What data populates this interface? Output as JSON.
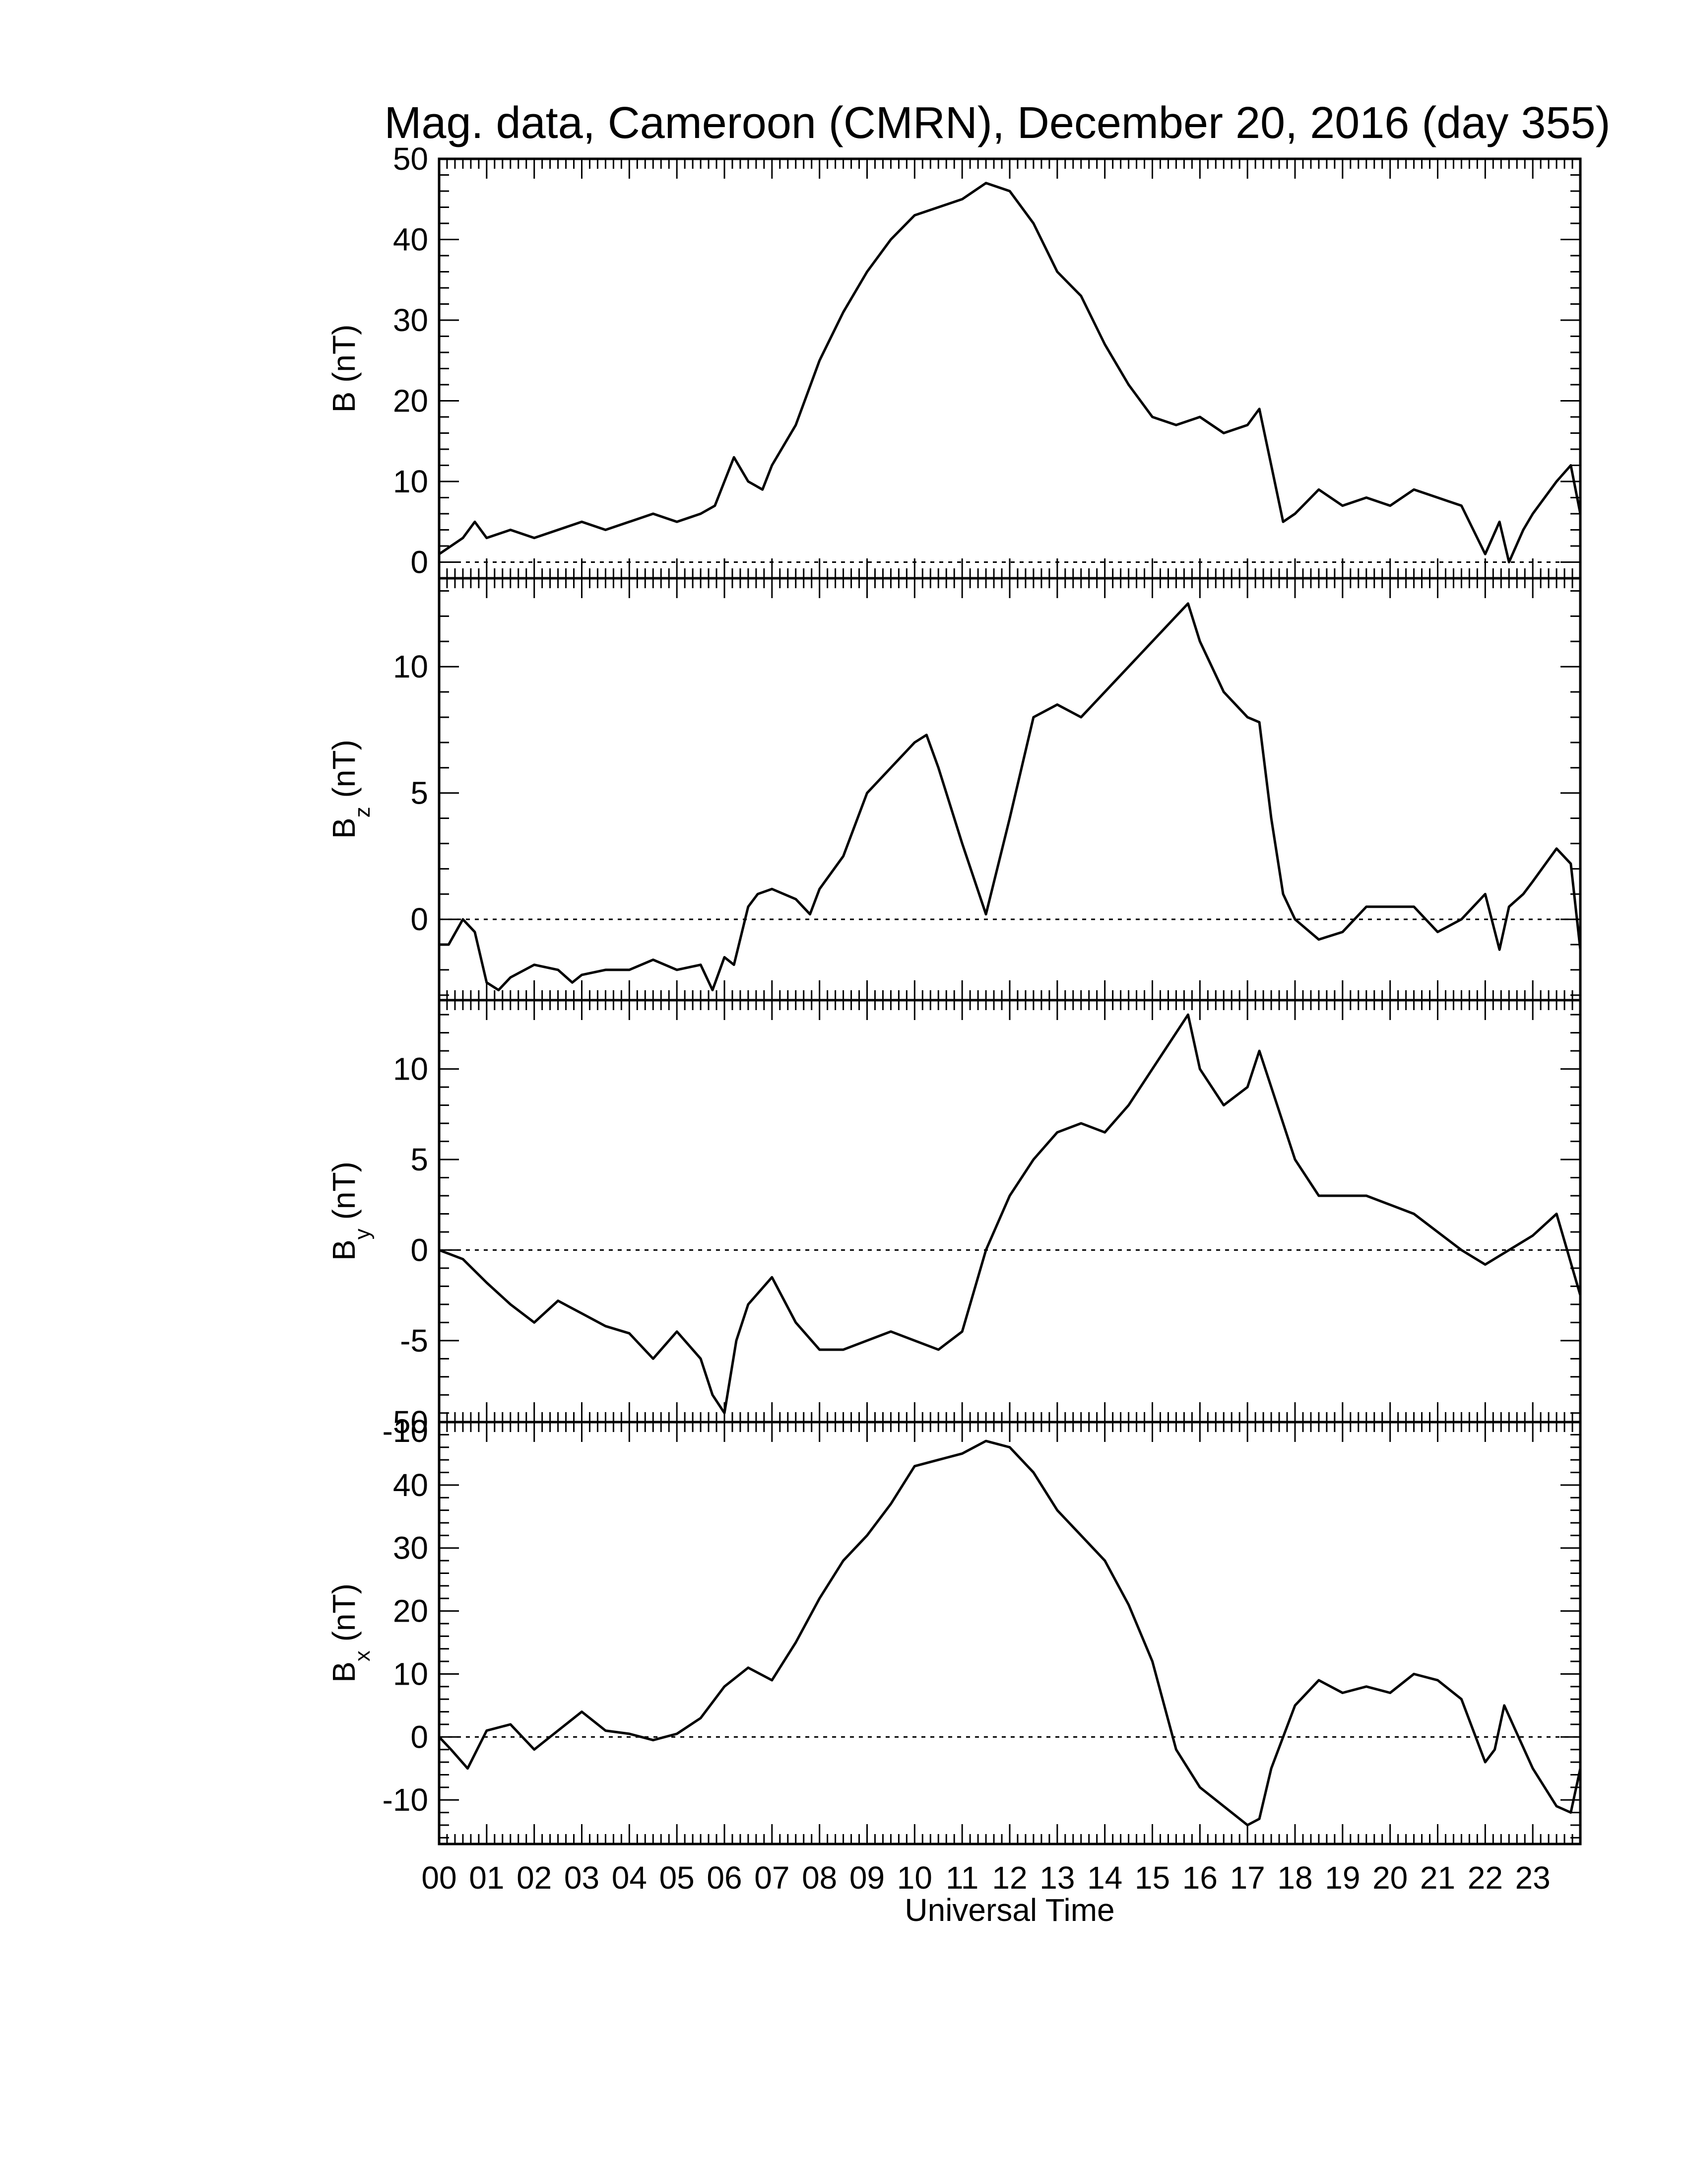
{
  "chart_data": {
    "type": "line",
    "title": "Mag. data, Cameroon (CMRN), December 20, 2016 (day 355)",
    "xlabel": "Universal Time",
    "x_unit": "hours UT",
    "xlim": [
      0,
      24
    ],
    "x_tick_labels": [
      "00",
      "01",
      "02",
      "03",
      "04",
      "05",
      "06",
      "07",
      "08",
      "09",
      "10",
      "11",
      "12",
      "13",
      "14",
      "15",
      "16",
      "17",
      "18",
      "19",
      "20",
      "21",
      "22",
      "23"
    ],
    "grid": false,
    "panels": [
      {
        "ylabel": {
          "main": "B",
          "sub": "",
          "unit": " (nT)"
        },
        "ylim": [
          -2,
          50
        ],
        "yticks": [
          0,
          10,
          20,
          30,
          40,
          50
        ],
        "zero_line": true,
        "x": [
          0.0,
          0.5,
          0.75,
          1.0,
          1.5,
          2.0,
          2.5,
          3.0,
          3.5,
          4.0,
          4.5,
          5.0,
          5.5,
          5.8,
          6.0,
          6.2,
          6.5,
          6.8,
          7.0,
          7.5,
          8.0,
          8.5,
          9.0,
          9.5,
          10.0,
          10.5,
          11.0,
          11.5,
          12.0,
          12.5,
          13.0,
          13.5,
          14.0,
          14.5,
          15.0,
          15.5,
          16.0,
          16.5,
          17.0,
          17.25,
          17.5,
          17.75,
          18.0,
          18.5,
          19.0,
          19.5,
          20.0,
          20.5,
          21.0,
          21.5,
          22.0,
          22.3,
          22.5,
          22.8,
          23.0,
          23.5,
          23.8,
          24.0
        ],
        "y": [
          1,
          3,
          5,
          3,
          4,
          3,
          4,
          5,
          4,
          5,
          6,
          5,
          6,
          7,
          10,
          13,
          10,
          9,
          12,
          17,
          25,
          31,
          36,
          40,
          43,
          44,
          45,
          47,
          46,
          42,
          36,
          33,
          27,
          22,
          18,
          17,
          18,
          16,
          17,
          19,
          12,
          5,
          6,
          9,
          7,
          8,
          7,
          9,
          8,
          7,
          1,
          5,
          0,
          4,
          6,
          10,
          12,
          6
        ]
      },
      {
        "ylabel": {
          "main": "B",
          "sub": "z",
          "unit": " (nT)"
        },
        "ylim": [
          -3.2,
          13.5
        ],
        "yticks": [
          0,
          5,
          10
        ],
        "zero_line": true,
        "x": [
          0.0,
          0.2,
          0.5,
          0.75,
          1.0,
          1.25,
          1.5,
          2.0,
          2.5,
          2.8,
          3.0,
          3.5,
          4.0,
          4.5,
          5.0,
          5.5,
          5.75,
          6.0,
          6.2,
          6.5,
          6.7,
          7.0,
          7.5,
          7.8,
          8.0,
          8.5,
          9.0,
          9.5,
          10.0,
          10.25,
          10.5,
          11.0,
          11.5,
          12.0,
          12.5,
          13.0,
          13.5,
          14.0,
          14.5,
          15.0,
          15.5,
          15.75,
          16.0,
          16.5,
          17.0,
          17.25,
          17.5,
          17.75,
          18.0,
          18.5,
          19.0,
          19.5,
          20.0,
          20.5,
          21.0,
          21.5,
          22.0,
          22.3,
          22.5,
          22.8,
          23.0,
          23.5,
          23.8,
          24.0
        ],
        "y": [
          -1,
          -1,
          0,
          -0.5,
          -2.5,
          -2.8,
          -2.3,
          -1.8,
          -2,
          -2.5,
          -2.2,
          -2,
          -2,
          -1.6,
          -2,
          -1.8,
          -2.8,
          -1.5,
          -1.8,
          0.5,
          1,
          1.2,
          0.8,
          0.2,
          1.2,
          2.5,
          5,
          6,
          7,
          7.3,
          6,
          3,
          0.2,
          4,
          8,
          8.5,
          8,
          9,
          10,
          11,
          12,
          12.5,
          11,
          9,
          8,
          7.8,
          4,
          1,
          0,
          -0.8,
          -0.5,
          0.5,
          0.5,
          0.5,
          -0.5,
          0,
          1,
          -1.2,
          0.5,
          1,
          1.5,
          2.8,
          2.2,
          -1.2
        ]
      },
      {
        "ylabel": {
          "main": "B",
          "sub": "y",
          "unit": " (nT)"
        },
        "ylim": [
          -9.5,
          13.8
        ],
        "yticks": [
          -10,
          -5,
          0,
          5,
          10
        ],
        "zero_line": true,
        "x": [
          0.0,
          0.5,
          1.0,
          1.5,
          2.0,
          2.5,
          3.0,
          3.5,
          4.0,
          4.5,
          5.0,
          5.5,
          5.75,
          6.0,
          6.25,
          6.5,
          7.0,
          7.5,
          8.0,
          8.5,
          9.0,
          9.5,
          10.0,
          10.5,
          11.0,
          11.5,
          12.0,
          12.5,
          13.0,
          13.5,
          14.0,
          14.5,
          15.0,
          15.5,
          15.75,
          16.0,
          16.5,
          17.0,
          17.25,
          17.5,
          18.0,
          18.5,
          19.0,
          19.5,
          20.0,
          20.5,
          21.0,
          21.5,
          22.0,
          22.5,
          23.0,
          23.5,
          24.0
        ],
        "y": [
          0,
          -0.5,
          -1.8,
          -3,
          -4,
          -2.8,
          -3.5,
          -4.2,
          -4.6,
          -6,
          -4.5,
          -6,
          -8,
          -9,
          -5,
          -3,
          -1.5,
          -4,
          -5.5,
          -5.5,
          -5,
          -4.5,
          -5,
          -5.5,
          -4.5,
          0,
          3,
          5,
          6.5,
          7,
          6.5,
          8,
          10,
          12,
          13,
          10,
          8,
          9,
          11,
          9,
          5,
          3,
          3,
          3,
          2.5,
          2,
          1,
          0,
          -0.8,
          0,
          0.8,
          2,
          -2.5
        ]
      },
      {
        "ylabel": {
          "main": "B",
          "sub": "x",
          "unit": " (nT)"
        },
        "ylim": [
          -17,
          50
        ],
        "yticks": [
          -10,
          0,
          10,
          20,
          30,
          40,
          50
        ],
        "zero_line": true,
        "x": [
          0.0,
          0.25,
          0.6,
          1.0,
          1.5,
          2.0,
          2.5,
          3.0,
          3.5,
          4.0,
          4.5,
          5.0,
          5.5,
          6.0,
          6.5,
          7.0,
          7.5,
          8.0,
          8.5,
          9.0,
          9.5,
          10.0,
          10.5,
          11.0,
          11.5,
          12.0,
          12.5,
          13.0,
          13.5,
          14.0,
          14.5,
          15.0,
          15.5,
          16.0,
          16.5,
          17.0,
          17.25,
          17.5,
          18.0,
          18.5,
          19.0,
          19.5,
          20.0,
          20.5,
          21.0,
          21.5,
          22.0,
          22.2,
          22.4,
          22.7,
          23.0,
          23.5,
          23.8,
          24.0
        ],
        "y": [
          0,
          -2,
          -5,
          1,
          2,
          -2,
          1,
          4,
          1,
          0.5,
          -0.5,
          0.5,
          3,
          8,
          11,
          9,
          15,
          22,
          28,
          32,
          37,
          43,
          44,
          45,
          47,
          46,
          42,
          36,
          32,
          28,
          21,
          12,
          -2,
          -8,
          -11,
          -14,
          -13,
          -5,
          5,
          9,
          7,
          8,
          7,
          10,
          9,
          6,
          -4,
          -2,
          5,
          0,
          -5,
          -11,
          -12,
          -5
        ]
      }
    ]
  }
}
